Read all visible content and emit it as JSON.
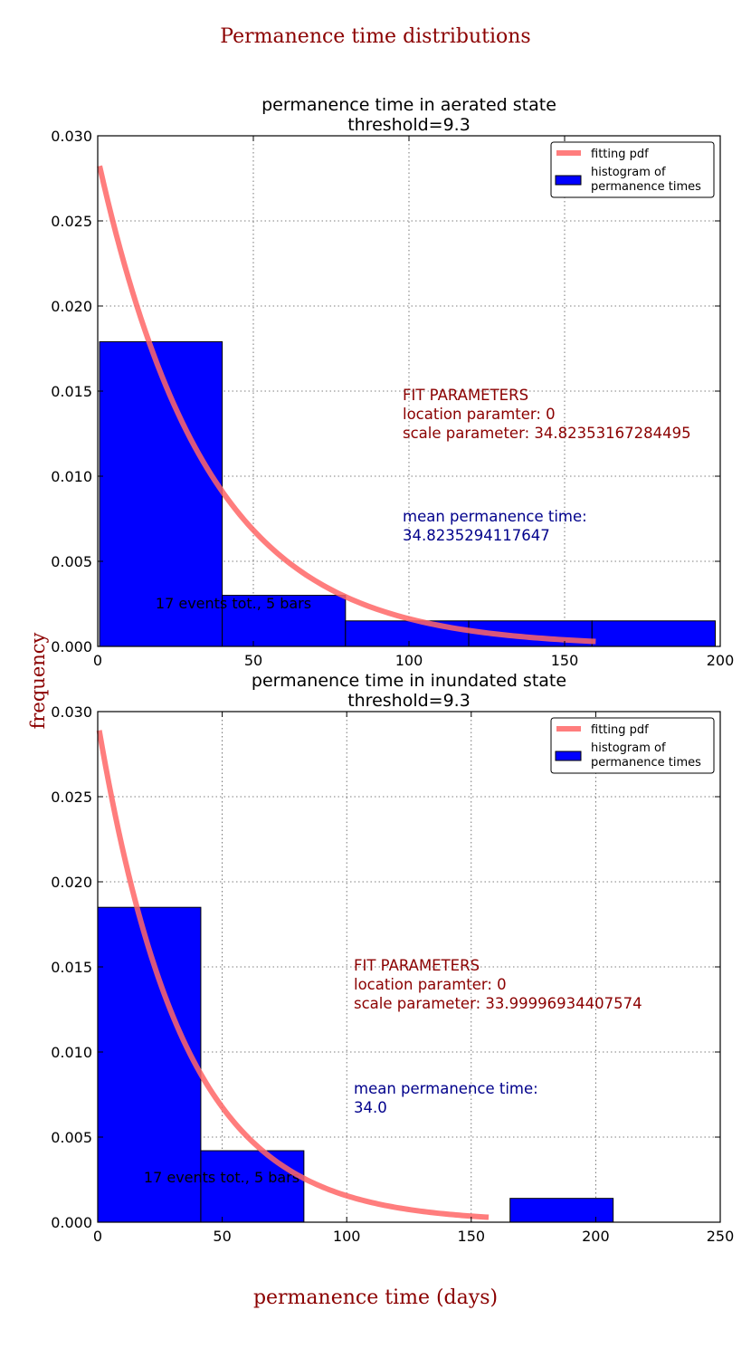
{
  "figure": {
    "suptitle": "Permanence time distributions",
    "ylabel": "frequency",
    "xlabel": "permanence time (days)",
    "title_color": "#8b0000"
  },
  "colors": {
    "bar_fill": "#0000ff",
    "bar_edge": "#000000",
    "pdf_line": "#ff6666",
    "fit_text": "#8b0000",
    "mean_text": "#00008b",
    "grid": "#555555"
  },
  "chart_data": [
    {
      "type": "bar",
      "title_line1": "permanence time in aerated state",
      "title_line2": "threshold=9.3",
      "xlim": [
        0,
        200
      ],
      "ylim": [
        0,
        0.03
      ],
      "xticks": [
        "0",
        "50",
        "100",
        "150",
        "200"
      ],
      "xtick_values": [
        0,
        50,
        100,
        150,
        200
      ],
      "yticks": [
        "0.000",
        "0.005",
        "0.010",
        "0.015",
        "0.020",
        "0.025",
        "0.030"
      ],
      "ytick_values": [
        0,
        0.005,
        0.01,
        0.015,
        0.02,
        0.025,
        0.03
      ],
      "grid": true,
      "legend_placement": "top-right",
      "legend": [
        "fitting pdf",
        "histogram of",
        "permanence times"
      ],
      "bins": [
        {
          "x0": 0.6,
          "x1": 40.0,
          "value": 0.0179
        },
        {
          "x0": 40.0,
          "x1": 79.6,
          "value": 0.003
        },
        {
          "x0": 79.6,
          "x1": 119.2,
          "value": 0.0015
        },
        {
          "x0": 119.2,
          "x1": 158.8,
          "value": 0.0015
        },
        {
          "x0": 158.8,
          "x1": 198.4,
          "value": 0.0015
        }
      ],
      "pdf": {
        "loc": 0,
        "scale": 34.82353167284495,
        "x_start": 0.6,
        "x_end": 160
      },
      "fit_label": "FIT PARAMETERS",
      "fit_loc": "location paramter: 0",
      "fit_scale": "scale parameter: 34.82353167284495",
      "mean_label": "mean permanence time:",
      "mean_value": "34.8235294117647",
      "events_note": "17 events tot., 5 bars"
    },
    {
      "type": "bar",
      "title_line1": "permanence time in inundated state",
      "title_line2": "threshold=9.3",
      "xlim": [
        0,
        250
      ],
      "ylim": [
        0,
        0.03
      ],
      "xticks": [
        "0",
        "50",
        "100",
        "150",
        "200",
        "250"
      ],
      "xtick_values": [
        0,
        50,
        100,
        150,
        200,
        250
      ],
      "yticks": [
        "0.000",
        "0.005",
        "0.010",
        "0.015",
        "0.020",
        "0.025",
        "0.030"
      ],
      "ytick_values": [
        0,
        0.005,
        0.01,
        0.015,
        0.02,
        0.025,
        0.03
      ],
      "grid": true,
      "legend_placement": "top-right",
      "legend": [
        "fitting pdf",
        "histogram of",
        "permanence times"
      ],
      "bins": [
        {
          "x0": 0,
          "x1": 41.4,
          "value": 0.0185
        },
        {
          "x0": 41.4,
          "x1": 82.8,
          "value": 0.0042
        },
        {
          "x0": 82.8,
          "x1": 124.2,
          "value": 0
        },
        {
          "x0": 124.2,
          "x1": 165.6,
          "value": 0
        },
        {
          "x0": 165.6,
          "x1": 207.0,
          "value": 0.0014
        }
      ],
      "pdf": {
        "loc": 0,
        "scale": 33.99996934407574,
        "x_start": 0.6,
        "x_end": 157
      },
      "fit_label": "FIT PARAMETERS",
      "fit_loc": "location paramter: 0",
      "fit_scale": "scale parameter: 33.99996934407574",
      "mean_label": "mean permanence time:",
      "mean_value": "34.0",
      "events_note": "17 events tot., 5 bars"
    }
  ]
}
